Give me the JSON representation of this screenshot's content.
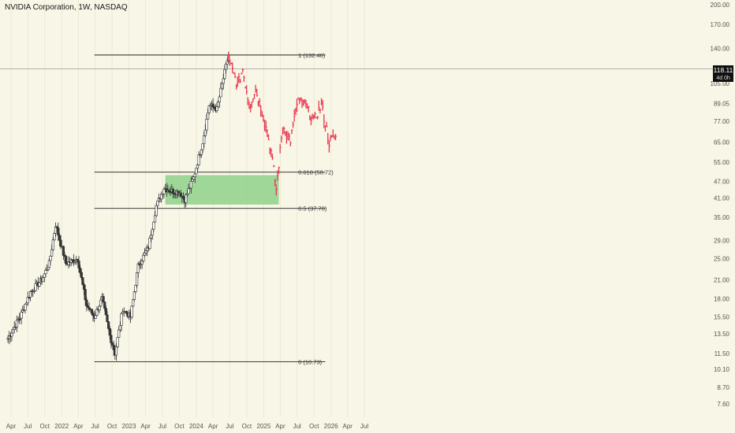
{
  "header": {
    "title": "NVIDIA Corporation, 1W, NASDAQ"
  },
  "price_badge": {
    "value": "118.11",
    "sub": "4d 0h"
  },
  "colors": {
    "background": "#f8f6e6",
    "up_candle": "#ffffff",
    "down_candle": "#3a3a3a",
    "projection": "#e8384f",
    "zone_fill": "#8fd18a",
    "fib_line": "#222222",
    "axis_text": "#555555"
  },
  "chart_data": {
    "type": "candlestick",
    "y_scale": "log",
    "y_ticks": [
      200,
      170,
      140,
      105,
      89,
      77,
      65,
      55,
      47,
      41,
      35,
      29,
      25,
      21,
      18,
      15.5,
      13.5,
      11.5,
      10.1,
      8.7,
      7.6
    ],
    "y_tick_labels": [
      "200.00",
      "170.00",
      "140.00",
      "105.00",
      "89.05",
      "77.00",
      "65.00",
      "55.00",
      "47.00",
      "41.00",
      "35.00",
      "29.00",
      "25.00",
      "21.00",
      "18.00",
      "15.50",
      "13.50",
      "11.50",
      "10.10",
      "8.70",
      "7.60"
    ],
    "x_tick_labels": [
      "Apr",
      "Jul",
      "Oct",
      "2022",
      "Apr",
      "Jul",
      "Oct",
      "2023",
      "Apr",
      "Jul",
      "Oct",
      "2024",
      "Apr",
      "Jul",
      "Oct",
      "2025",
      "Apr",
      "Jul",
      "Oct",
      "2026",
      "Apr",
      "Jul"
    ],
    "x_tick_dates": [
      "2021-04-01",
      "2021-07-01",
      "2021-10-01",
      "2022-01-01",
      "2022-04-01",
      "2022-07-01",
      "2022-10-01",
      "2023-01-01",
      "2023-04-01",
      "2023-07-01",
      "2023-10-01",
      "2024-01-01",
      "2024-04-01",
      "2024-07-01",
      "2024-10-01",
      "2025-01-01",
      "2025-04-01",
      "2025-07-01",
      "2025-10-01",
      "2026-01-01",
      "2026-04-01",
      "2026-07-01"
    ],
    "current_price": 118.11,
    "fib_levels": [
      {
        "label": "1 (132.46)",
        "price": 132.46
      },
      {
        "label": "0.618 (50.72)",
        "price": 50.72
      },
      {
        "label": "0.5 (37.70)",
        "price": 37.7
      },
      {
        "label": "0 (10.73)",
        "price": 10.73
      }
    ],
    "zone": {
      "date_from": "2023-07-17",
      "date_to": "2025-03-24",
      "price_high": 49.5,
      "price_low": 38.9
    },
    "history_anchors": [
      [
        "2021-03-15",
        13.0
      ],
      [
        "2021-05-20",
        15.5
      ],
      [
        "2021-07-15",
        19.0
      ],
      [
        "2021-09-15",
        21.0
      ],
      [
        "2021-10-25",
        24.0
      ],
      [
        "2021-11-29",
        33.0
      ],
      [
        "2022-01-24",
        24.0
      ],
      [
        "2022-03-28",
        25.0
      ],
      [
        "2022-05-16",
        17.0
      ],
      [
        "2022-06-27",
        15.5
      ],
      [
        "2022-08-08",
        18.0
      ],
      [
        "2022-09-19",
        13.3
      ],
      [
        "2022-10-17",
        11.5
      ],
      [
        "2022-11-28",
        16.5
      ],
      [
        "2023-01-09",
        15.5
      ],
      [
        "2023-02-20",
        23.5
      ],
      [
        "2023-04-17",
        27.5
      ],
      [
        "2023-05-29",
        38.5
      ],
      [
        "2023-07-10",
        44.5
      ],
      [
        "2023-08-21",
        43.5
      ],
      [
        "2023-10-02",
        43.0
      ],
      [
        "2023-10-30",
        40.5
      ],
      [
        "2023-12-18",
        48.5
      ],
      [
        "2024-02-05",
        65.0
      ],
      [
        "2024-03-11",
        88.0
      ],
      [
        "2024-04-22",
        85.0
      ],
      [
        "2024-06-03",
        115.0
      ],
      [
        "2024-06-24",
        132.5
      ]
    ],
    "projection_anchors": [
      [
        "2024-06-24",
        128.0
      ],
      [
        "2024-08-12",
        103.0
      ],
      [
        "2024-09-09",
        118.0
      ],
      [
        "2024-10-14",
        88.0
      ],
      [
        "2024-11-18",
        100.0
      ],
      [
        "2024-12-30",
        80.0
      ],
      [
        "2025-02-10",
        60.0
      ],
      [
        "2025-03-10",
        44.0
      ],
      [
        "2025-04-14",
        74.0
      ],
      [
        "2025-05-26",
        66.0
      ],
      [
        "2025-07-07",
        92.0
      ],
      [
        "2025-08-18",
        87.0
      ],
      [
        "2025-09-29",
        77.0
      ],
      [
        "2025-11-10",
        88.0
      ],
      [
        "2025-12-22",
        65.0
      ],
      [
        "2026-01-26",
        68.0
      ]
    ]
  }
}
